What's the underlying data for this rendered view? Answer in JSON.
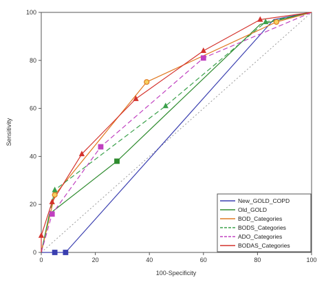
{
  "chart_data": {
    "type": "line",
    "xlabel": "100-Specificity",
    "ylabel": "Sensitivity",
    "xlim": [
      0,
      100
    ],
    "ylim": [
      0,
      100
    ],
    "x_ticks": [
      0,
      20,
      40,
      60,
      80,
      100
    ],
    "y_ticks": [
      0,
      20,
      40,
      60,
      80,
      100
    ],
    "grid": false,
    "legend_position": "bottom-right",
    "reference_line": {
      "points": [
        [
          0,
          0
        ],
        [
          100,
          100
        ]
      ],
      "color": "#999999",
      "style": "dotted"
    },
    "series": [
      {
        "name": "New_GOLD_COPD",
        "color": "#3a3fb0",
        "dash": "",
        "marker": "square",
        "marker_points": [
          [
            5,
            0
          ],
          [
            9,
            0
          ]
        ],
        "points": [
          [
            0,
            0
          ],
          [
            5,
            0
          ],
          [
            9,
            0
          ],
          [
            86,
            97
          ],
          [
            100,
            100
          ]
        ]
      },
      {
        "name": "Old_GOLD",
        "color": "#2e8b2e",
        "dash": "",
        "marker": "square",
        "marker_points": [
          [
            28,
            38
          ]
        ],
        "points": [
          [
            0,
            0
          ],
          [
            3,
            16
          ],
          [
            28,
            38
          ],
          [
            81,
            95
          ],
          [
            100,
            100
          ]
        ]
      },
      {
        "name": "BOD_Categories",
        "color": "#e07820",
        "dash": "",
        "marker": "circle",
        "marker_points": [
          [
            5,
            24
          ],
          [
            39,
            71
          ],
          [
            87,
            96
          ]
        ],
        "points": [
          [
            0,
            0
          ],
          [
            5,
            24
          ],
          [
            39,
            71
          ],
          [
            87,
            96
          ],
          [
            100,
            100
          ]
        ]
      },
      {
        "name": "BODS_Categories",
        "color": "#3aa04a",
        "dash": "7,4",
        "marker": "triangle",
        "marker_points": [
          [
            5,
            26
          ],
          [
            46,
            61
          ],
          [
            83,
            96
          ]
        ],
        "points": [
          [
            0,
            0
          ],
          [
            5,
            26
          ],
          [
            46,
            61
          ],
          [
            83,
            96
          ],
          [
            100,
            100
          ]
        ]
      },
      {
        "name": "ADO_Categories",
        "color": "#c040c0",
        "dash": "7,4",
        "marker": "square",
        "marker_points": [
          [
            4,
            16
          ],
          [
            22,
            44
          ],
          [
            60,
            81
          ]
        ],
        "points": [
          [
            0,
            0
          ],
          [
            4,
            16
          ],
          [
            22,
            44
          ],
          [
            60,
            81
          ],
          [
            100,
            100
          ]
        ]
      },
      {
        "name": "BODAS_Categories",
        "color": "#d4322c",
        "dash": "",
        "marker": "triangle",
        "marker_points": [
          [
            0,
            7
          ],
          [
            4,
            21
          ],
          [
            15,
            41
          ],
          [
            35,
            64
          ],
          [
            60,
            84
          ],
          [
            81,
            97
          ]
        ],
        "points": [
          [
            0,
            0
          ],
          [
            0,
            7
          ],
          [
            4,
            21
          ],
          [
            15,
            41
          ],
          [
            35,
            64
          ],
          [
            60,
            84
          ],
          [
            81,
            97
          ],
          [
            100,
            100
          ]
        ]
      }
    ]
  }
}
